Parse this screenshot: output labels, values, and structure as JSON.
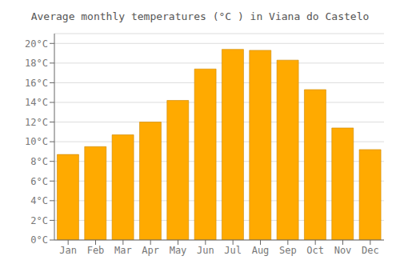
{
  "chart_data": {
    "type": "bar",
    "title": "Average monthly temperatures (°C ) in Viana do Castelo",
    "categories": [
      "Jan",
      "Feb",
      "Mar",
      "Apr",
      "May",
      "Jun",
      "Jul",
      "Aug",
      "Sep",
      "Oct",
      "Nov",
      "Dec"
    ],
    "values": [
      8.7,
      9.5,
      10.7,
      12.0,
      14.2,
      17.4,
      19.4,
      19.3,
      18.3,
      15.3,
      11.4,
      9.2
    ],
    "color": "#FFAA00",
    "ylim": [
      0,
      21
    ],
    "yticks": [
      {
        "value": 0,
        "label": "0°C"
      },
      {
        "value": 2,
        "label": "2°C"
      },
      {
        "value": 4,
        "label": "4°C"
      },
      {
        "value": 6,
        "label": "6°C"
      },
      {
        "value": 8,
        "label": "8°C"
      },
      {
        "value": 10,
        "label": "10°C"
      },
      {
        "value": 12,
        "label": "12°C"
      },
      {
        "value": 14,
        "label": "14°C"
      },
      {
        "value": 16,
        "label": "16°C"
      },
      {
        "value": 18,
        "label": "18°C"
      },
      {
        "value": 20,
        "label": "20°C"
      }
    ],
    "grid": true
  }
}
